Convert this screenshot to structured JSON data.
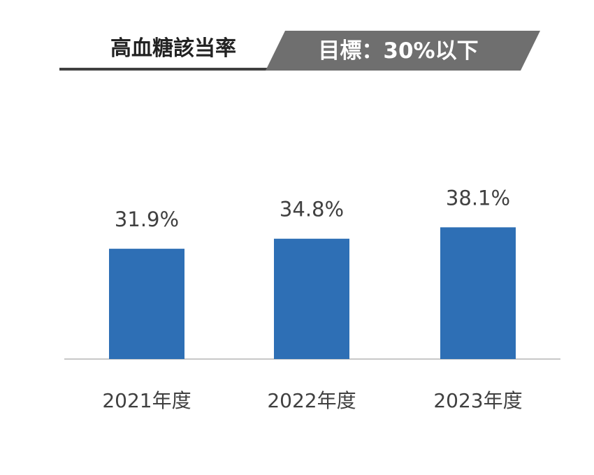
{
  "header": {
    "title": "高血糖該当率",
    "target": "目標：30%以下"
  },
  "colors": {
    "bar": "#2e6fb5",
    "banner": "#6f6f6f",
    "baseline": "#c8c8c8",
    "text": "#404040"
  },
  "chart_data": {
    "type": "bar",
    "title": "高血糖該当率",
    "subtitle": "目標：30%以下",
    "categories": [
      "2021年度",
      "2022年度",
      "2023年度"
    ],
    "values": [
      31.9,
      34.8,
      38.1
    ],
    "data_labels": [
      "31.9%",
      "34.8%",
      "38.1%"
    ],
    "unit": "%",
    "grid": false,
    "legend": "none"
  }
}
